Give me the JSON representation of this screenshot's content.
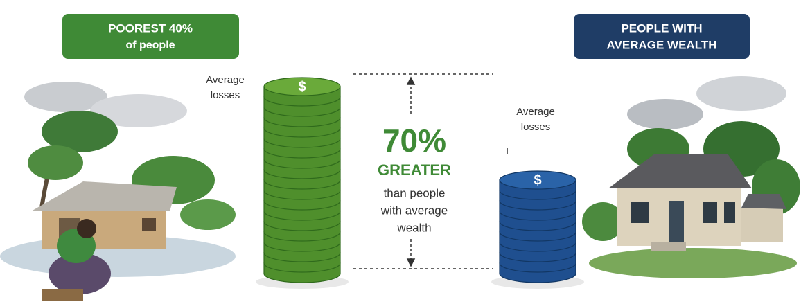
{
  "left_badge": {
    "lines": [
      "POOREST 40%",
      "of people"
    ]
  },
  "right_badge": {
    "lines": [
      "PEOPLE WITH",
      "AVERAGE WEALTH"
    ]
  },
  "left_stack": {
    "label": [
      "Average",
      "losses"
    ],
    "symbol": "$"
  },
  "right_stack": {
    "label": [
      "Average",
      "losses"
    ],
    "symbol": "$"
  },
  "comparison": {
    "headline": "70%",
    "subhead": "GREATER",
    "lines": [
      "than people",
      "with average",
      "wealth"
    ]
  }
}
